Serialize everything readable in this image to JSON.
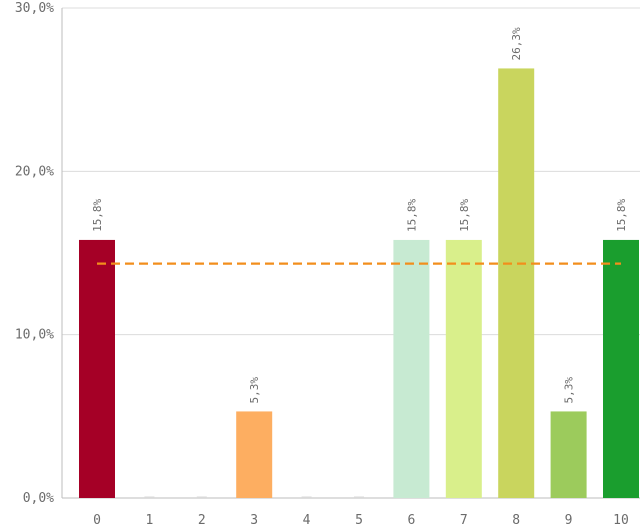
{
  "chart_data": {
    "type": "bar",
    "categories": [
      "0",
      "1",
      "2",
      "3",
      "4",
      "5",
      "6",
      "7",
      "8",
      "9",
      "10"
    ],
    "values": [
      15.8,
      0,
      0,
      5.3,
      0,
      0,
      15.8,
      15.8,
      26.3,
      5.3,
      15.8
    ],
    "value_labels": [
      "15,8%",
      "",
      "",
      "5,3%",
      "",
      "",
      "15,8%",
      "15,8%",
      "26,3%",
      "5,3%",
      "15,8%"
    ],
    "colors": [
      "#a50026",
      "#d9d9d9",
      "#d9d9d9",
      "#fdae61",
      "#d9d9d9",
      "#d9d9d9",
      "#c7ead2",
      "#d9ef8b",
      "#c9d55e",
      "#9ccb5c",
      "#1a9e2e"
    ],
    "ylim": [
      0,
      30
    ],
    "y_ticks": [
      0,
      10,
      20,
      30
    ],
    "y_tick_labels": [
      "0,0%",
      "10,0%",
      "20,0%",
      "30,0%"
    ],
    "average_line": {
      "value": 14.35,
      "color": "#f28e1c"
    },
    "grid": true,
    "title": "",
    "xlabel": "",
    "ylabel": ""
  }
}
